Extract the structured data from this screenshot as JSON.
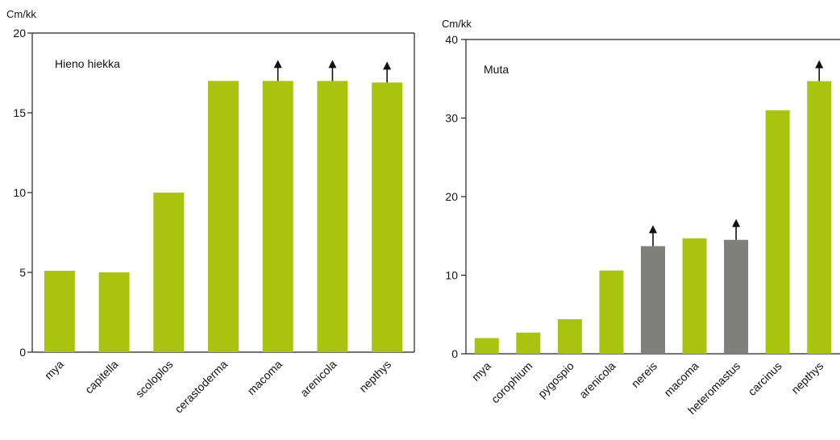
{
  "chart_data": [
    {
      "type": "bar",
      "ylabel": "Cm/kk",
      "annotation": "Hieno hiekka",
      "ylim": [
        0,
        20
      ],
      "yticks": [
        0,
        5,
        10,
        15,
        20
      ],
      "grid": false,
      "categories": [
        "mya",
        "capitella",
        "scoloplos",
        "cerastoderma",
        "macoma",
        "arenicola",
        "nepthys"
      ],
      "values": [
        5.1,
        5.0,
        10.0,
        17.0,
        17.0,
        17.0,
        16.9
      ],
      "bar_colors": [
        "#a9c410",
        "#a9c410",
        "#a9c410",
        "#a9c410",
        "#a9c410",
        "#a9c410",
        "#a9c410"
      ],
      "arrows": [
        false,
        false,
        false,
        false,
        true,
        true,
        true
      ]
    },
    {
      "type": "bar",
      "ylabel": "Cm/kk",
      "annotation": "Muta",
      "ylim": [
        0,
        40
      ],
      "yticks": [
        0,
        10,
        20,
        30,
        40
      ],
      "grid": false,
      "categories": [
        "mya",
        "corophium",
        "pygospio",
        "arenicola",
        "nereis",
        "macoma",
        "heteromastus",
        "carcinus",
        "nepthys"
      ],
      "values": [
        2.0,
        2.7,
        4.4,
        10.6,
        13.7,
        14.7,
        14.5,
        31.0,
        34.7
      ],
      "bar_colors": [
        "#a9c410",
        "#a9c410",
        "#a9c410",
        "#a9c410",
        "#7f7f7b",
        "#a9c410",
        "#7f7f7b",
        "#a9c410",
        "#a9c410"
      ],
      "arrows": [
        false,
        false,
        false,
        false,
        true,
        false,
        true,
        false,
        true
      ]
    }
  ]
}
